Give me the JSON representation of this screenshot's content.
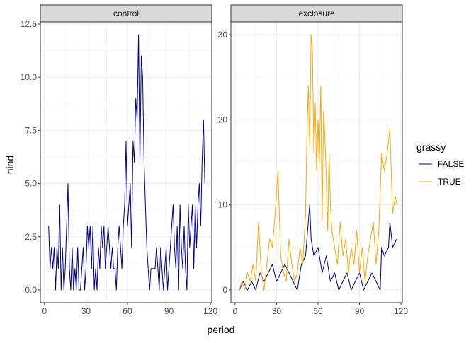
{
  "chart_data": {
    "type": "line",
    "xlabel": "period",
    "ylabel": "nind",
    "legend": {
      "title": "grassy",
      "placement": "right"
    },
    "series_styles": [
      {
        "key": "FALSE",
        "name": "FALSE",
        "color": "#00008B"
      },
      {
        "key": "TRUE",
        "name": "TRUE",
        "color": "#FFA500"
      }
    ],
    "x_ticks": [
      0,
      30,
      60,
      90,
      120
    ],
    "x_tick_labels": [
      "0",
      "30",
      "60",
      "90",
      "120"
    ],
    "xlim": [
      -3,
      121
    ],
    "grid": true,
    "panels": [
      {
        "strip": "control",
        "ylim": [
          -0.6,
          12.6
        ],
        "y_ticks": [
          0,
          2.5,
          5,
          7.5,
          10,
          12.5
        ],
        "y_tick_labels": [
          "0.0",
          "2.5",
          "5.0",
          "7.5",
          "10.0",
          "12.5"
        ],
        "series": [
          {
            "key": "FALSE",
            "x": [
              3,
              4,
              5,
              6,
              7,
              8,
              9,
              10,
              11,
              12,
              13,
              14,
              15,
              16,
              17,
              18,
              19,
              20,
              21,
              22,
              23,
              24,
              25,
              26,
              27,
              28,
              29,
              30,
              31,
              32,
              33,
              34,
              35,
              36,
              37,
              38,
              39,
              40,
              41,
              42,
              43,
              44,
              45,
              46,
              47,
              48,
              49,
              50,
              51,
              52,
              53,
              54,
              55,
              56,
              57,
              58,
              59,
              60,
              61,
              62,
              63,
              64,
              65,
              66,
              67,
              68,
              69,
              70,
              71,
              72,
              73,
              74,
              75,
              76,
              77,
              78,
              79,
              80,
              81,
              82,
              83,
              84,
              85,
              86,
              87,
              88,
              89,
              90,
              91,
              92,
              93,
              94,
              95,
              96,
              97,
              98,
              99,
              100,
              101,
              102,
              103,
              104,
              105,
              106,
              107,
              108,
              109,
              110,
              111,
              112,
              113,
              114,
              115,
              116
            ],
            "y": [
              3,
              1,
              2,
              1,
              2,
              0,
              2,
              1,
              4,
              0,
              2,
              0,
              1,
              3,
              5,
              1,
              0,
              2,
              0,
              1,
              0,
              2,
              0,
              0,
              1,
              2,
              0,
              1,
              3,
              2,
              3,
              1,
              3,
              0,
              1,
              0,
              2,
              1,
              3,
              2,
              3,
              1,
              2,
              3,
              2,
              1,
              2,
              1,
              1,
              0,
              2,
              3,
              2,
              1,
              3,
              4,
              7,
              3,
              4,
              5,
              2,
              7,
              6,
              9,
              8,
              12,
              6,
              11,
              10,
              6,
              4,
              2,
              1,
              0,
              1,
              1,
              1,
              1,
              2,
              1,
              0,
              2,
              1,
              0,
              1,
              2,
              0,
              1,
              2,
              3,
              4,
              2,
              1,
              3,
              0,
              4,
              2,
              1,
              3,
              1,
              0,
              4,
              2,
              3,
              4,
              1,
              4,
              2,
              4,
              5,
              3,
              6,
              8,
              5
            ]
          }
        ]
      },
      {
        "strip": "exclosure",
        "ylim": [
          -1.5,
          31.5
        ],
        "y_ticks": [
          0,
          10,
          20,
          30
        ],
        "y_tick_labels": [
          "0",
          "10",
          "20",
          "30"
        ],
        "series": [
          {
            "key": "FALSE",
            "x": [
              3,
              6,
              9,
              12,
              15,
              18,
              21,
              24,
              27,
              30,
              33,
              36,
              39,
              42,
              45,
              48,
              51,
              54,
              55,
              57,
              60,
              63,
              66,
              69,
              72,
              75,
              78,
              81,
              84,
              87,
              90,
              93,
              96,
              99,
              102,
              105,
              106,
              108,
              111,
              112,
              114,
              117
            ],
            "y": [
              0,
              1,
              0,
              1,
              0,
              2,
              1,
              2,
              3,
              1,
              2,
              3,
              2,
              1,
              0,
              3,
              4,
              10,
              6,
              4,
              5,
              2,
              4,
              1,
              2,
              0,
              1,
              2,
              0,
              1,
              2,
              0,
              1,
              2,
              1,
              0,
              5,
              4,
              5,
              8,
              5,
              6
            ]
          },
          {
            "key": "TRUE",
            "x": [
              3,
              5,
              7,
              9,
              11,
              13,
              15,
              17,
              19,
              21,
              23,
              25,
              27,
              29,
              31,
              33,
              35,
              37,
              39,
              41,
              43,
              45,
              47,
              49,
              51,
              52,
              53,
              54,
              55,
              56,
              57,
              58,
              59,
              60,
              61,
              62,
              63,
              64,
              65,
              66,
              67,
              68,
              69,
              70,
              72,
              74,
              76,
              78,
              80,
              82,
              84,
              86,
              88,
              90,
              92,
              94,
              96,
              98,
              100,
              102,
              104,
              106,
              108,
              110,
              112,
              114,
              116,
              117
            ],
            "y": [
              0,
              1,
              0,
              2,
              1,
              3,
              1,
              8,
              2,
              0,
              3,
              6,
              5,
              9,
              14,
              4,
              2,
              1,
              6,
              3,
              1,
              2,
              5,
              3,
              9,
              18,
              24,
              17,
              30,
              28,
              16,
              22,
              14,
              20,
              15,
              24,
              8,
              21,
              18,
              13,
              7,
              16,
              10,
              7,
              5,
              3,
              8,
              4,
              6,
              2,
              5,
              3,
              7,
              2,
              5,
              1,
              4,
              6,
              8,
              3,
              7,
              16,
              14,
              16,
              19,
              9,
              11,
              10
            ]
          }
        ]
      }
    ]
  }
}
